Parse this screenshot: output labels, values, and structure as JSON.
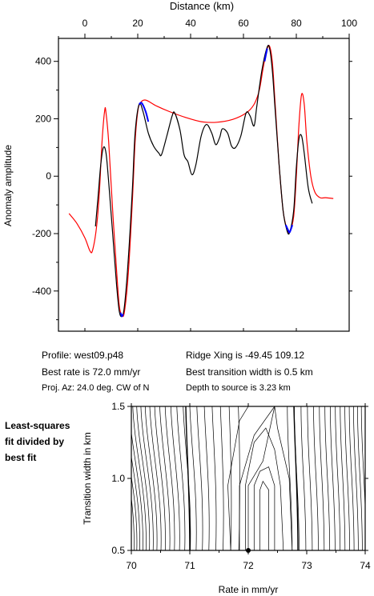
{
  "chart_data": [
    {
      "type": "line",
      "title": "",
      "xlabel": "Distance (km)",
      "ylabel": "Anomaly amplitude",
      "xlim": [
        -10,
        100
      ],
      "ylim": [
        -540,
        480
      ],
      "xticks": [
        "0",
        "20",
        "40",
        "60",
        "80",
        "100"
      ],
      "yticks": [
        "400",
        "200",
        "0",
        "-200",
        "-400"
      ],
      "ytick_values": [
        400,
        200,
        0,
        -200,
        -400
      ],
      "xtick_values": [
        0,
        20,
        40,
        60,
        80,
        100
      ],
      "x_axis_position": "top",
      "series": [
        {
          "color": "#ff0000",
          "points": [
            [
              -6,
              -130
            ],
            [
              -3,
              -165
            ],
            [
              0,
              -215
            ],
            [
              2,
              -262
            ],
            [
              3,
              -255
            ],
            [
              4.5,
              -170
            ],
            [
              5.5,
              -50
            ],
            [
              6.5,
              120
            ],
            [
              7.5,
              230
            ],
            [
              8,
              220
            ],
            [
              9,
              120
            ],
            [
              10.5,
              -120
            ],
            [
              12,
              -330
            ],
            [
              13,
              -450
            ],
            [
              14,
              -485
            ],
            [
              15,
              -470
            ],
            [
              16.5,
              -330
            ],
            [
              18,
              -80
            ],
            [
              19,
              120
            ],
            [
              20,
              225
            ],
            [
              21,
              255
            ],
            [
              23,
              265
            ],
            [
              27,
              245
            ],
            [
              32,
              225
            ],
            [
              38,
              205
            ],
            [
              44,
              190
            ],
            [
              50,
              188
            ],
            [
              56,
              198
            ],
            [
              61,
              220
            ],
            [
              64,
              250
            ],
            [
              66,
              300
            ],
            [
              67.5,
              380
            ],
            [
              69,
              445
            ],
            [
              70,
              450
            ],
            [
              71,
              390
            ],
            [
              72,
              250
            ],
            [
              73.5,
              40
            ],
            [
              75,
              -120
            ],
            [
              76.5,
              -185
            ],
            [
              77.5,
              -195
            ],
            [
              79,
              -140
            ],
            [
              80,
              0
            ],
            [
              81,
              180
            ],
            [
              82,
              285
            ],
            [
              83,
              250
            ],
            [
              84,
              120
            ],
            [
              85.5,
              0
            ],
            [
              87,
              -55
            ],
            [
              89,
              -75
            ],
            [
              91,
              -75
            ],
            [
              94,
              -78
            ]
          ]
        },
        {
          "color": "#000000",
          "points": [
            [
              4,
              -175
            ],
            [
              5,
              -70
            ],
            [
              6,
              40
            ],
            [
              7,
              100
            ],
            [
              8,
              80
            ],
            [
              9,
              -20
            ],
            [
              10.5,
              -200
            ],
            [
              12,
              -380
            ],
            [
              13,
              -470
            ],
            [
              14,
              -488
            ],
            [
              15,
              -450
            ],
            [
              16.5,
              -280
            ],
            [
              18,
              -40
            ],
            [
              19,
              150
            ],
            [
              20.5,
              250
            ],
            [
              22,
              225
            ],
            [
              24,
              150
            ],
            [
              26,
              105
            ],
            [
              28,
              80
            ],
            [
              29,
              75
            ],
            [
              31,
              140
            ],
            [
              33,
              210
            ],
            [
              34,
              220
            ],
            [
              36,
              160
            ],
            [
              37.5,
              75
            ],
            [
              39,
              50
            ],
            [
              40.5,
              5
            ],
            [
              42,
              40
            ],
            [
              44,
              140
            ],
            [
              46,
              180
            ],
            [
              48,
              150
            ],
            [
              49.5,
              110
            ],
            [
              51,
              135
            ],
            [
              52,
              165
            ],
            [
              54,
              150
            ],
            [
              55.5,
              105
            ],
            [
              57,
              100
            ],
            [
              59,
              140
            ],
            [
              61,
              220
            ],
            [
              62.5,
              210
            ],
            [
              64,
              175
            ],
            [
              65,
              240
            ],
            [
              67,
              370
            ],
            [
              69,
              450
            ],
            [
              70,
              440
            ],
            [
              71,
              360
            ],
            [
              72,
              230
            ],
            [
              73.5,
              40
            ],
            [
              75,
              -120
            ],
            [
              76.5,
              -190
            ],
            [
              77.5,
              -195
            ],
            [
              79,
              -120
            ],
            [
              80,
              30
            ],
            [
              81,
              130
            ],
            [
              82,
              140
            ],
            [
              83,
              80
            ],
            [
              84.5,
              -40
            ],
            [
              86,
              -95
            ]
          ]
        },
        {
          "color": "#0000ff",
          "segments": [
            [
              [
                13.5,
                -475
              ],
              [
                14,
                -488
              ],
              [
                14.5,
                -480
              ]
            ],
            [
              [
                20.5,
                250
              ],
              [
                21.5,
                255
              ],
              [
                23,
                225
              ],
              [
                24,
                190
              ]
            ],
            [
              [
                68,
                400
              ],
              [
                69,
                445
              ]
            ],
            [
              [
                76,
                -170
              ],
              [
                77,
                -190
              ],
              [
                77.5,
                -195
              ],
              [
                78.5,
                -170
              ]
            ]
          ]
        }
      ],
      "info": {
        "profile": "Profile: west09.p48",
        "best_rate": "Best rate is 72.0 mm/yr",
        "proj_az": "Proj. Az: 24.0 deg. CW of N",
        "ridge": "Ridge Xing is -49.45 109.12",
        "transition": "Best transition width is 0.5 km",
        "depth": "Depth to source is   3.23 km"
      }
    },
    {
      "type": "contour",
      "title": "",
      "xlabel": "Rate in mm/yr",
      "ylabel": "Transition width in km",
      "xlim": [
        70,
        74
      ],
      "ylim": [
        0.5,
        1.5
      ],
      "xticks": [
        "70",
        "71",
        "72",
        "73",
        "74"
      ],
      "xtick_values": [
        70,
        71,
        72,
        73,
        74
      ],
      "yticks": [
        "1.5",
        "1.0",
        "0.5"
      ],
      "ytick_values": [
        1.5,
        1.0,
        0.5
      ],
      "best_fit_point": [
        72.0,
        0.5
      ],
      "note": [
        "Least-squares",
        "fit divided by",
        "best fit"
      ]
    }
  ]
}
